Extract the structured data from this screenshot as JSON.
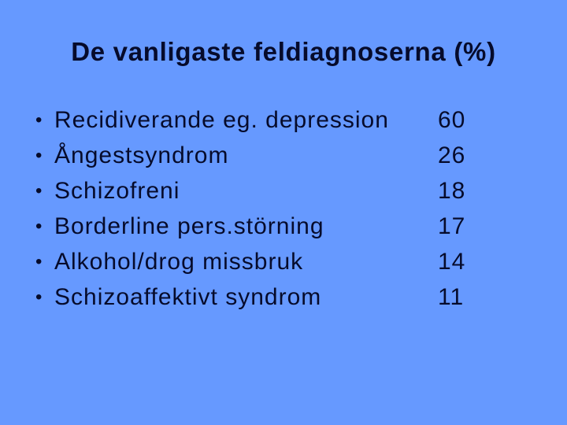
{
  "slide": {
    "title": "De vanligaste feldiagnoserna (%)",
    "bullet_char": "•",
    "items": [
      {
        "label": "Recidiverande eg. depression",
        "value": "60"
      },
      {
        "label": "Ångestsyndrom",
        "value": "26"
      },
      {
        "label": "Schizofreni",
        "value": "18"
      },
      {
        "label": "Borderline pers.störning",
        "value": "17"
      },
      {
        "label": "Alkohol/drog missbruk",
        "value": "14"
      },
      {
        "label": "Schizoaffektivt syndrom",
        "value": "11"
      }
    ],
    "colors": {
      "background": "#6699ff",
      "text": "#060b2b"
    }
  }
}
